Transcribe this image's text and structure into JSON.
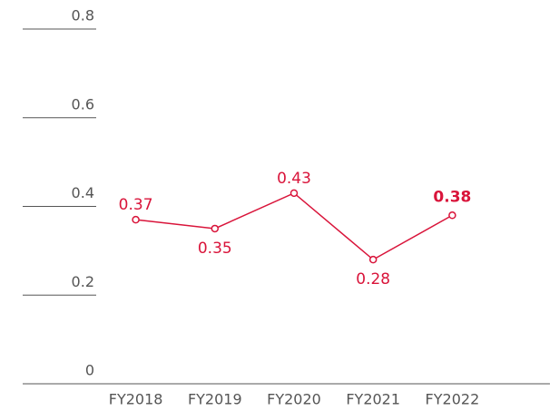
{
  "chart_data": {
    "type": "line",
    "categories": [
      "FY2018",
      "FY2019",
      "FY2020",
      "FY2021",
      "FY2022"
    ],
    "series": [
      {
        "name": null,
        "color": "#d9143a",
        "values": [
          0.37,
          0.35,
          0.43,
          0.28,
          0.38
        ]
      }
    ],
    "ylim": [
      0,
      0.8
    ],
    "yticks": [
      0,
      0.2,
      0.4,
      0.6,
      0.8
    ]
  }
}
